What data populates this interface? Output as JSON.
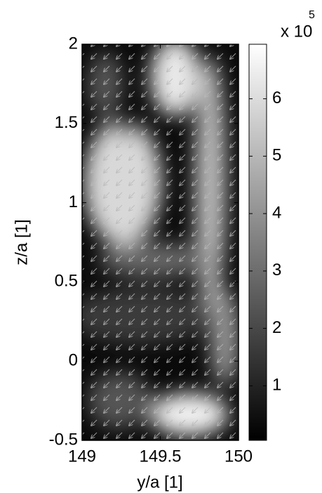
{
  "chart_data": {
    "type": "quiver",
    "xlabel": "y/a [1]",
    "ylabel": "z/a [1]",
    "xlim": [
      149,
      150
    ],
    "xticks": [
      149,
      149.5,
      150
    ],
    "ylim": [
      -0.5,
      2
    ],
    "yticks": [
      -0.5,
      0,
      0.5,
      1,
      1.5,
      2
    ],
    "colorbar": {
      "clim": [
        0.05,
        6.95
      ],
      "ticks": [
        1,
        2,
        3,
        4,
        5,
        6
      ],
      "multiplier_label": "x 10",
      "exponent": 5,
      "colormap": [
        "#000000",
        "#ffffff"
      ]
    }
  }
}
